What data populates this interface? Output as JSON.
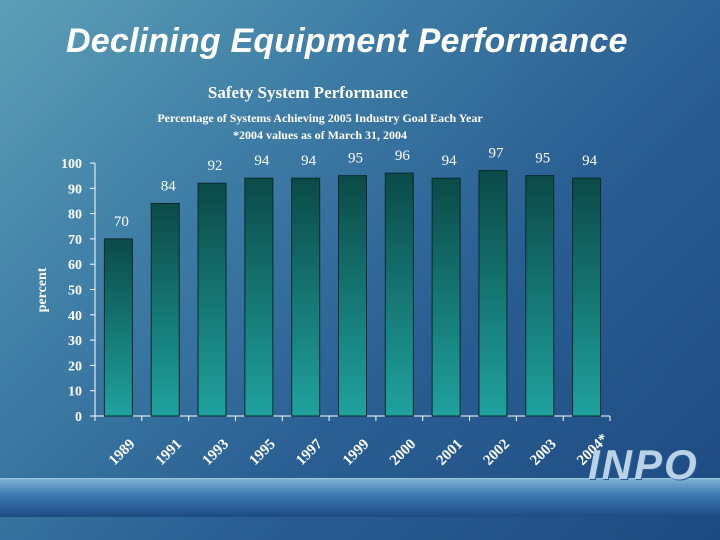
{
  "slide": {
    "title": "Declining Equipment Performance",
    "logo": "INPO"
  },
  "colors": {
    "bar_top": "#0b4a47",
    "bar_bottom": "#1fa29e",
    "axis": "#ffffff"
  },
  "chart_data": {
    "type": "bar",
    "title": "Safety System Performance",
    "subtitle": "Percentage of Systems Achieving 2005 Industry Goal Each Year",
    "note": "*2004 values as of March 31, 2004",
    "xlabel": "",
    "ylabel": "percent",
    "ylim": [
      0,
      100
    ],
    "yticks": [
      0,
      10,
      20,
      30,
      40,
      50,
      60,
      70,
      80,
      90,
      100
    ],
    "grid": false,
    "categories": [
      "1989",
      "1991",
      "1993",
      "1995",
      "1997",
      "1999",
      "2000",
      "2001",
      "2002",
      "2003",
      "2004*"
    ],
    "values": [
      70,
      84,
      92,
      94,
      94,
      95,
      96,
      94,
      97,
      95,
      94
    ]
  }
}
